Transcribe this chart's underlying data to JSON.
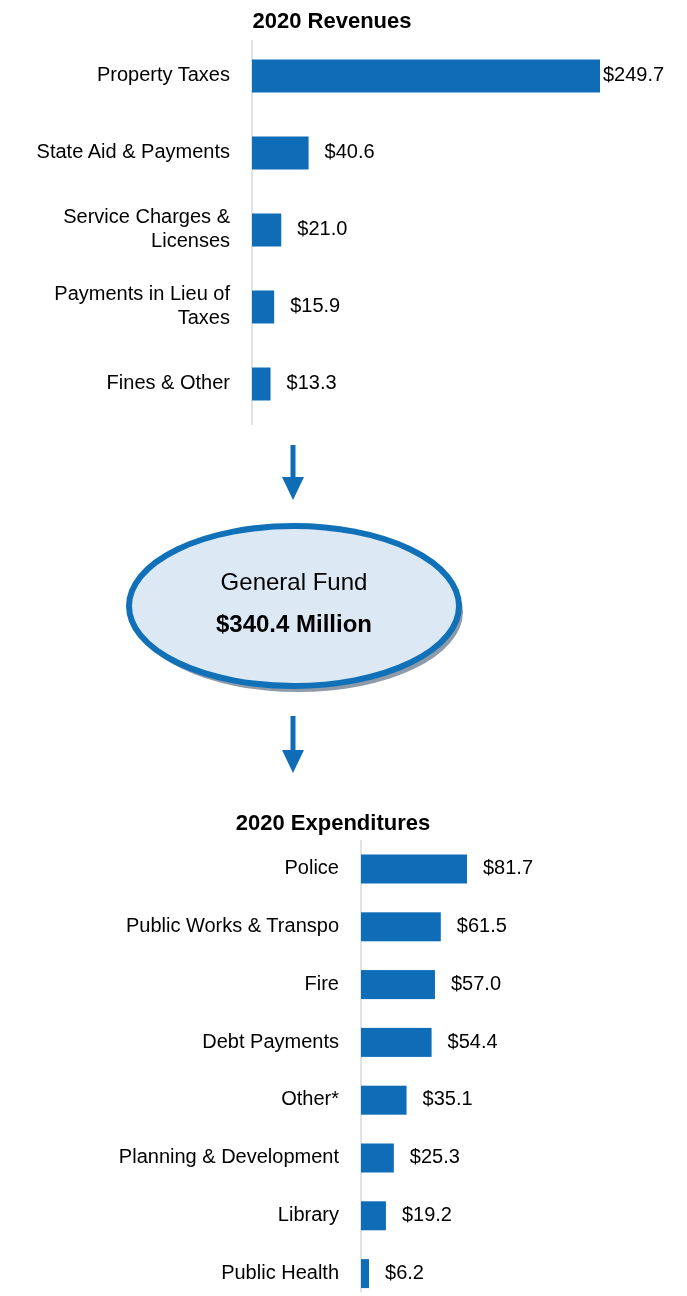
{
  "chart_data": [
    {
      "type": "bar",
      "orientation": "horizontal",
      "title": "2020 Revenues",
      "categories": [
        "Property Taxes",
        "State Aid & Payments",
        "Service Charges & Licenses",
        "Payments in Lieu of Taxes",
        "Fines & Other"
      ],
      "values": [
        249.7,
        40.6,
        21.0,
        15.9,
        13.3
      ],
      "value_labels": [
        "$249.7",
        "$40.6",
        "$21.0",
        "$15.9",
        "$13.3"
      ],
      "color": "#0f6db8"
    },
    {
      "type": "other",
      "title": "General Fund",
      "subtitle": "$340.4 Million"
    },
    {
      "type": "bar",
      "orientation": "horizontal",
      "title": "2020 Expenditures",
      "categories": [
        "Police",
        "Public Works & Transpo",
        "Fire",
        "Debt Payments",
        "Other*",
        "Planning & Development",
        "Library",
        "Public Health"
      ],
      "values": [
        81.7,
        61.5,
        57.0,
        54.4,
        35.1,
        25.3,
        19.2,
        6.2
      ],
      "value_labels": [
        "$81.7",
        "$61.5",
        "$57.0",
        "$54.4",
        "$35.1",
        "$25.3",
        "$19.2",
        "$6.2"
      ],
      "color": "#0f6db8"
    }
  ]
}
